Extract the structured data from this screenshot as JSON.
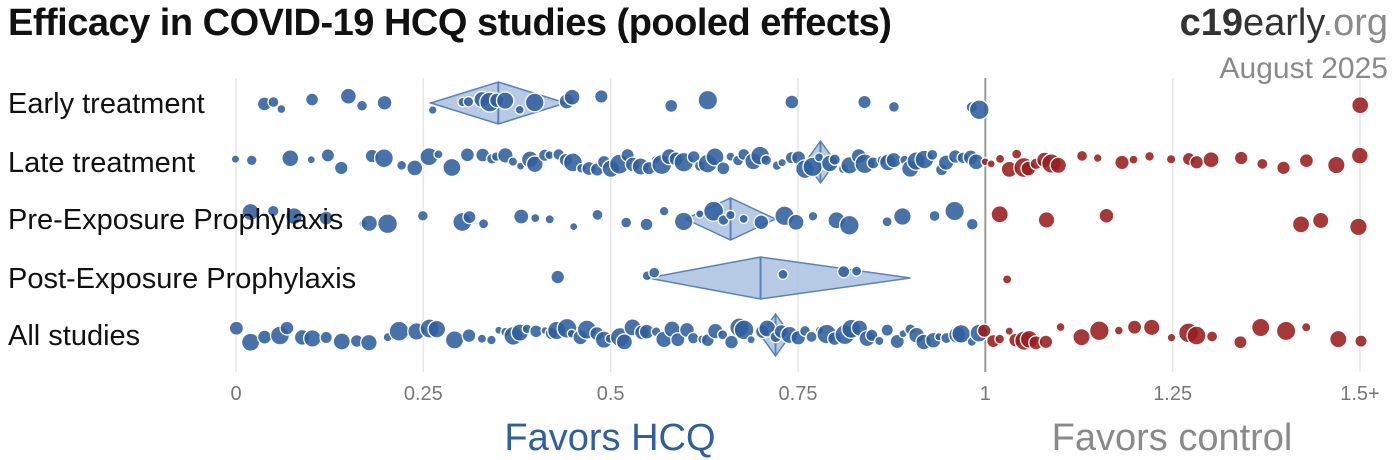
{
  "header": {
    "title": "Efficacy in COVID-19 HCQ studies (pooled effects)",
    "brand_bold": "c19",
    "brand_rest": "early",
    "brand_tld": ".org",
    "date": "August 2025"
  },
  "chart_data": {
    "type": "scatter",
    "title": "Efficacy in COVID-19 HCQ studies (pooled effects)",
    "xlim": [
      0,
      1.5
    ],
    "x_ticks": [
      "0",
      "0.25",
      "0.5",
      "0.75",
      "1",
      "1.25",
      "1.5+"
    ],
    "x_tick_values": [
      0,
      0.25,
      0.5,
      0.75,
      1,
      1.25,
      1.5
    ],
    "reference_line": 1,
    "favors_left": "Favors HCQ",
    "favors_right": "Favors control",
    "colors": {
      "favorable": "#2f5f9e",
      "unfavorable": "#9b1c1c",
      "diamond_fill": "#a9c1e0",
      "diamond_stroke": "#5b82b8"
    },
    "rows": [
      {
        "label": "Early treatment",
        "pooled": {
          "estimate": 0.35,
          "ci": [
            0.26,
            0.44
          ]
        },
        "studies": [
          0.04,
          0.05,
          0.06,
          0.1,
          0.15,
          0.17,
          0.2,
          0.26,
          0.3,
          0.31,
          0.33,
          0.34,
          0.35,
          0.36,
          0.38,
          0.4,
          0.44,
          0.45,
          0.49,
          0.58,
          0.63,
          0.74,
          0.84,
          0.88,
          0.98,
          0.99,
          1.5
        ]
      },
      {
        "label": "Late treatment",
        "pooled": {
          "estimate": 0.78,
          "ci": [
            0.76,
            0.8
          ]
        },
        "studies": [
          0,
          0.02,
          0.07,
          0.1,
          0.12,
          0.14,
          0.18,
          0.2,
          0.22,
          0.24,
          0.26,
          0.27,
          0.29,
          0.31,
          0.33,
          0.34,
          0.35,
          0.36,
          0.37,
          0.38,
          0.39,
          0.4,
          0.41,
          0.42,
          0.43,
          0.44,
          0.45,
          0.46,
          0.47,
          0.48,
          0.49,
          0.5,
          0.51,
          0.52,
          0.53,
          0.54,
          0.55,
          0.56,
          0.57,
          0.58,
          0.59,
          0.6,
          0.61,
          0.62,
          0.63,
          0.64,
          0.65,
          0.66,
          0.67,
          0.68,
          0.69,
          0.7,
          0.71,
          0.72,
          0.73,
          0.74,
          0.75,
          0.76,
          0.77,
          0.78,
          0.79,
          0.8,
          0.81,
          0.82,
          0.83,
          0.84,
          0.85,
          0.86,
          0.87,
          0.88,
          0.89,
          0.9,
          0.91,
          0.92,
          0.93,
          0.94,
          0.95,
          0.96,
          0.97,
          0.98,
          0.99,
          1.0,
          1.01,
          1.02,
          1.03,
          1.04,
          1.05,
          1.06,
          1.07,
          1.08,
          1.09,
          1.1,
          1.13,
          1.15,
          1.18,
          1.2,
          1.22,
          1.25,
          1.27,
          1.28,
          1.3,
          1.34,
          1.37,
          1.4,
          1.43,
          1.47,
          1.5
        ]
      },
      {
        "label": "Pre-Exposure Prophylaxis",
        "pooled": {
          "estimate": 0.66,
          "ci": [
            0.6,
            0.72
          ]
        },
        "studies": [
          0.02,
          0.05,
          0.08,
          0.12,
          0.17,
          0.18,
          0.2,
          0.25,
          0.3,
          0.31,
          0.33,
          0.38,
          0.4,
          0.42,
          0.45,
          0.48,
          0.52,
          0.55,
          0.57,
          0.6,
          0.62,
          0.64,
          0.65,
          0.66,
          0.68,
          0.7,
          0.73,
          0.75,
          0.77,
          0.8,
          0.82,
          0.87,
          0.89,
          0.93,
          0.96,
          0.98,
          1.02,
          1.08,
          1.16,
          1.42,
          1.45,
          1.5
        ]
      },
      {
        "label": "Post-Exposure Prophylaxis",
        "pooled": {
          "estimate": 0.7,
          "ci": [
            0.55,
            0.9
          ]
        },
        "studies": [
          0.43,
          0.55,
          0.56,
          0.73,
          0.81,
          0.83,
          1.03
        ]
      },
      {
        "label": "All studies",
        "pooled": {
          "estimate": 0.72,
          "ci": [
            0.7,
            0.74
          ]
        },
        "studies": [
          0,
          0.02,
          0.04,
          0.06,
          0.07,
          0.09,
          0.1,
          0.12,
          0.14,
          0.16,
          0.18,
          0.2,
          0.22,
          0.24,
          0.26,
          0.27,
          0.29,
          0.31,
          0.33,
          0.34,
          0.35,
          0.36,
          0.37,
          0.38,
          0.39,
          0.4,
          0.41,
          0.42,
          0.43,
          0.44,
          0.45,
          0.46,
          0.47,
          0.48,
          0.49,
          0.5,
          0.51,
          0.52,
          0.53,
          0.54,
          0.55,
          0.56,
          0.57,
          0.58,
          0.59,
          0.6,
          0.61,
          0.62,
          0.63,
          0.64,
          0.65,
          0.66,
          0.67,
          0.68,
          0.69,
          0.7,
          0.71,
          0.72,
          0.73,
          0.74,
          0.75,
          0.76,
          0.77,
          0.78,
          0.79,
          0.8,
          0.81,
          0.82,
          0.83,
          0.84,
          0.85,
          0.86,
          0.87,
          0.88,
          0.89,
          0.9,
          0.91,
          0.92,
          0.93,
          0.94,
          0.95,
          0.96,
          0.97,
          0.98,
          0.99,
          1.0,
          1.01,
          1.02,
          1.03,
          1.04,
          1.05,
          1.06,
          1.07,
          1.08,
          1.1,
          1.13,
          1.15,
          1.18,
          1.2,
          1.22,
          1.25,
          1.27,
          1.28,
          1.3,
          1.34,
          1.37,
          1.4,
          1.43,
          1.47,
          1.5
        ]
      }
    ]
  }
}
